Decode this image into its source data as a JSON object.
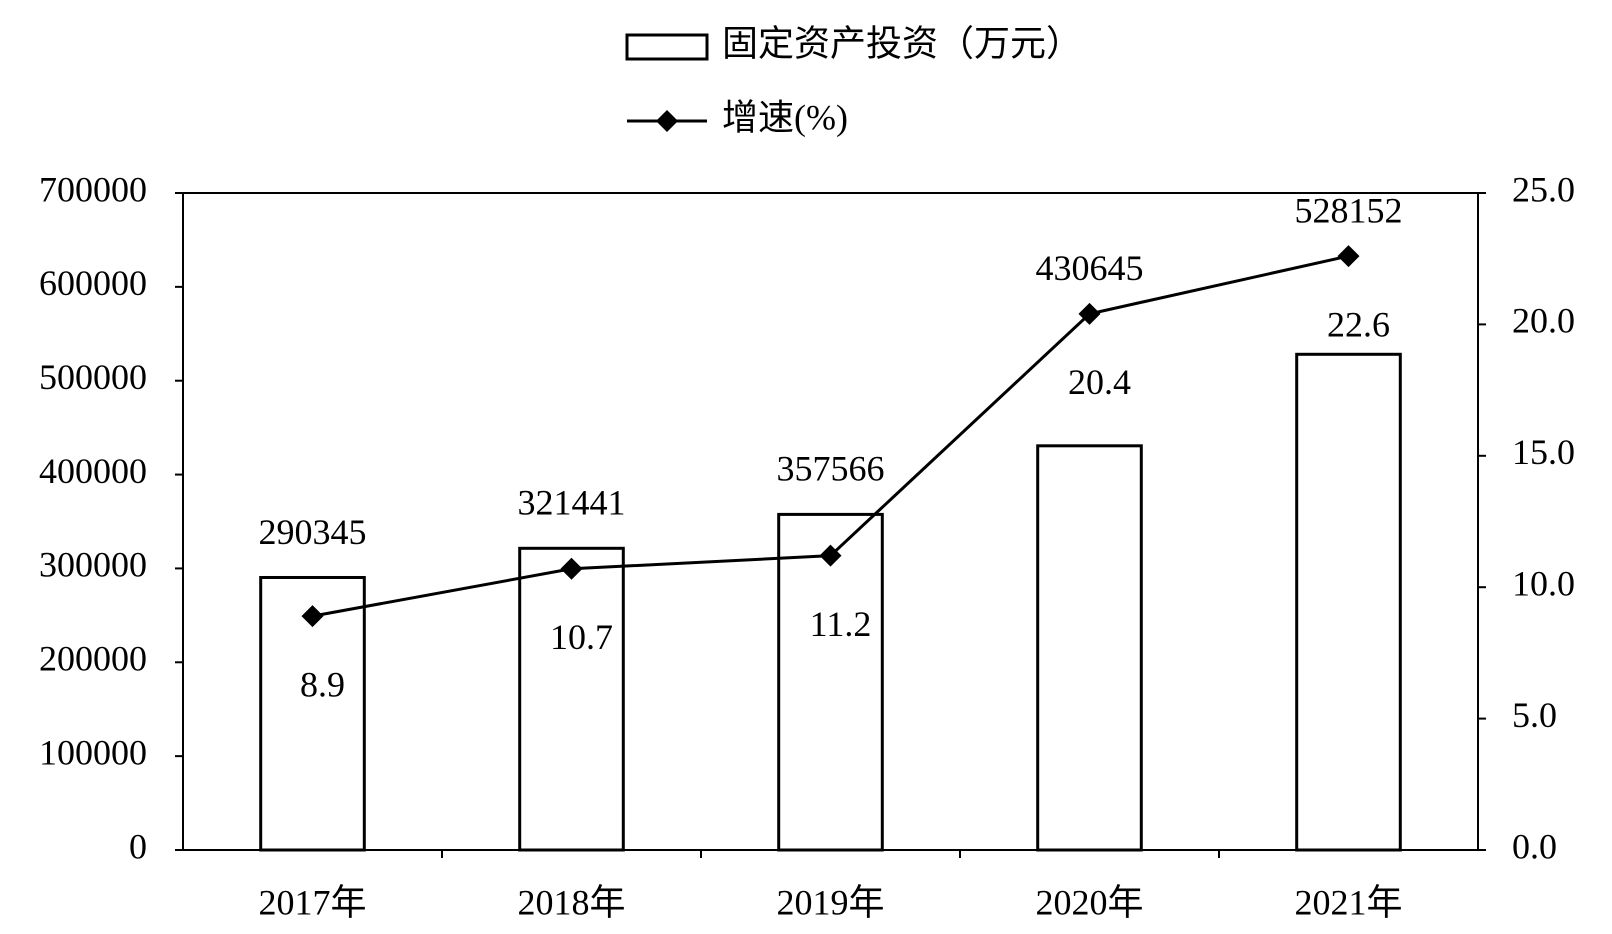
{
  "chart_data": {
    "type": "bar",
    "categories": [
      "2017年",
      "2018年",
      "2019年",
      "2020年",
      "2021年"
    ],
    "series": [
      {
        "name": "固定资产投资（万元）",
        "color": "#ffffff",
        "values": [
          290345,
          321441,
          357566,
          430645,
          528152
        ]
      },
      {
        "name": "增速(%)",
        "type": "line",
        "axis": "y2",
        "color": "#000000",
        "values": [
          8.9,
          10.7,
          11.2,
          20.4,
          22.6
        ]
      }
    ],
    "ylim": [
      0,
      700000
    ],
    "yticks": [
      0,
      100000,
      200000,
      300000,
      400000,
      500000,
      600000,
      700000
    ],
    "y2lim": [
      0,
      25
    ],
    "y2ticks": [
      {
        "value": 0,
        "label": "0.0"
      },
      {
        "value": 5,
        "label": "5.0"
      },
      {
        "value": 10,
        "label": "10.0"
      },
      {
        "value": 15,
        "label": "15.0"
      },
      {
        "value": 20,
        "label": "20.0"
      },
      {
        "value": 25,
        "label": "25.0"
      }
    ],
    "grid": false
  }
}
